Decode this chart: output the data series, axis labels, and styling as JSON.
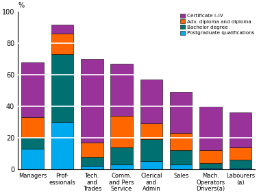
{
  "categories": [
    "Managers",
    "Prof-\nessionals",
    "Tech.\nand\nTrades",
    "Comm.\nand Pers\nService",
    "Clerical\nand\nAdmin",
    "Sales",
    "Mach.\nOperators\nDrivers(a)",
    "Labourers\n(a)"
  ],
  "postgraduate": [
    13,
    30,
    2,
    3,
    5,
    3,
    1,
    1
  ],
  "bachelor": [
    7,
    43,
    6,
    11,
    14,
    9,
    3,
    5
  ],
  "adv_diploma": [
    13,
    13,
    9,
    20,
    10,
    11,
    8,
    8
  ],
  "certificate": [
    35,
    6,
    53,
    33,
    28,
    26,
    28,
    22
  ],
  "colors": {
    "certificate": "#993399",
    "adv_diploma": "#FF6600",
    "bachelor": "#007070",
    "postgraduate": "#00AAEE"
  },
  "legend_labels": [
    "Certificate I–IV",
    "Adv. diploma and diploma",
    "Bachelor degree",
    "Postgraduate qualifications"
  ],
  "ylabel": "%",
  "ylim": [
    0,
    100
  ],
  "yticks": [
    0,
    20,
    40,
    60,
    80,
    100
  ],
  "bar_width": 0.75,
  "figsize": [
    3.78,
    2.83
  ],
  "dpi": 100,
  "bg_color": "#ffffff",
  "grid_color": "#ffffff",
  "edge_color": "#000000"
}
